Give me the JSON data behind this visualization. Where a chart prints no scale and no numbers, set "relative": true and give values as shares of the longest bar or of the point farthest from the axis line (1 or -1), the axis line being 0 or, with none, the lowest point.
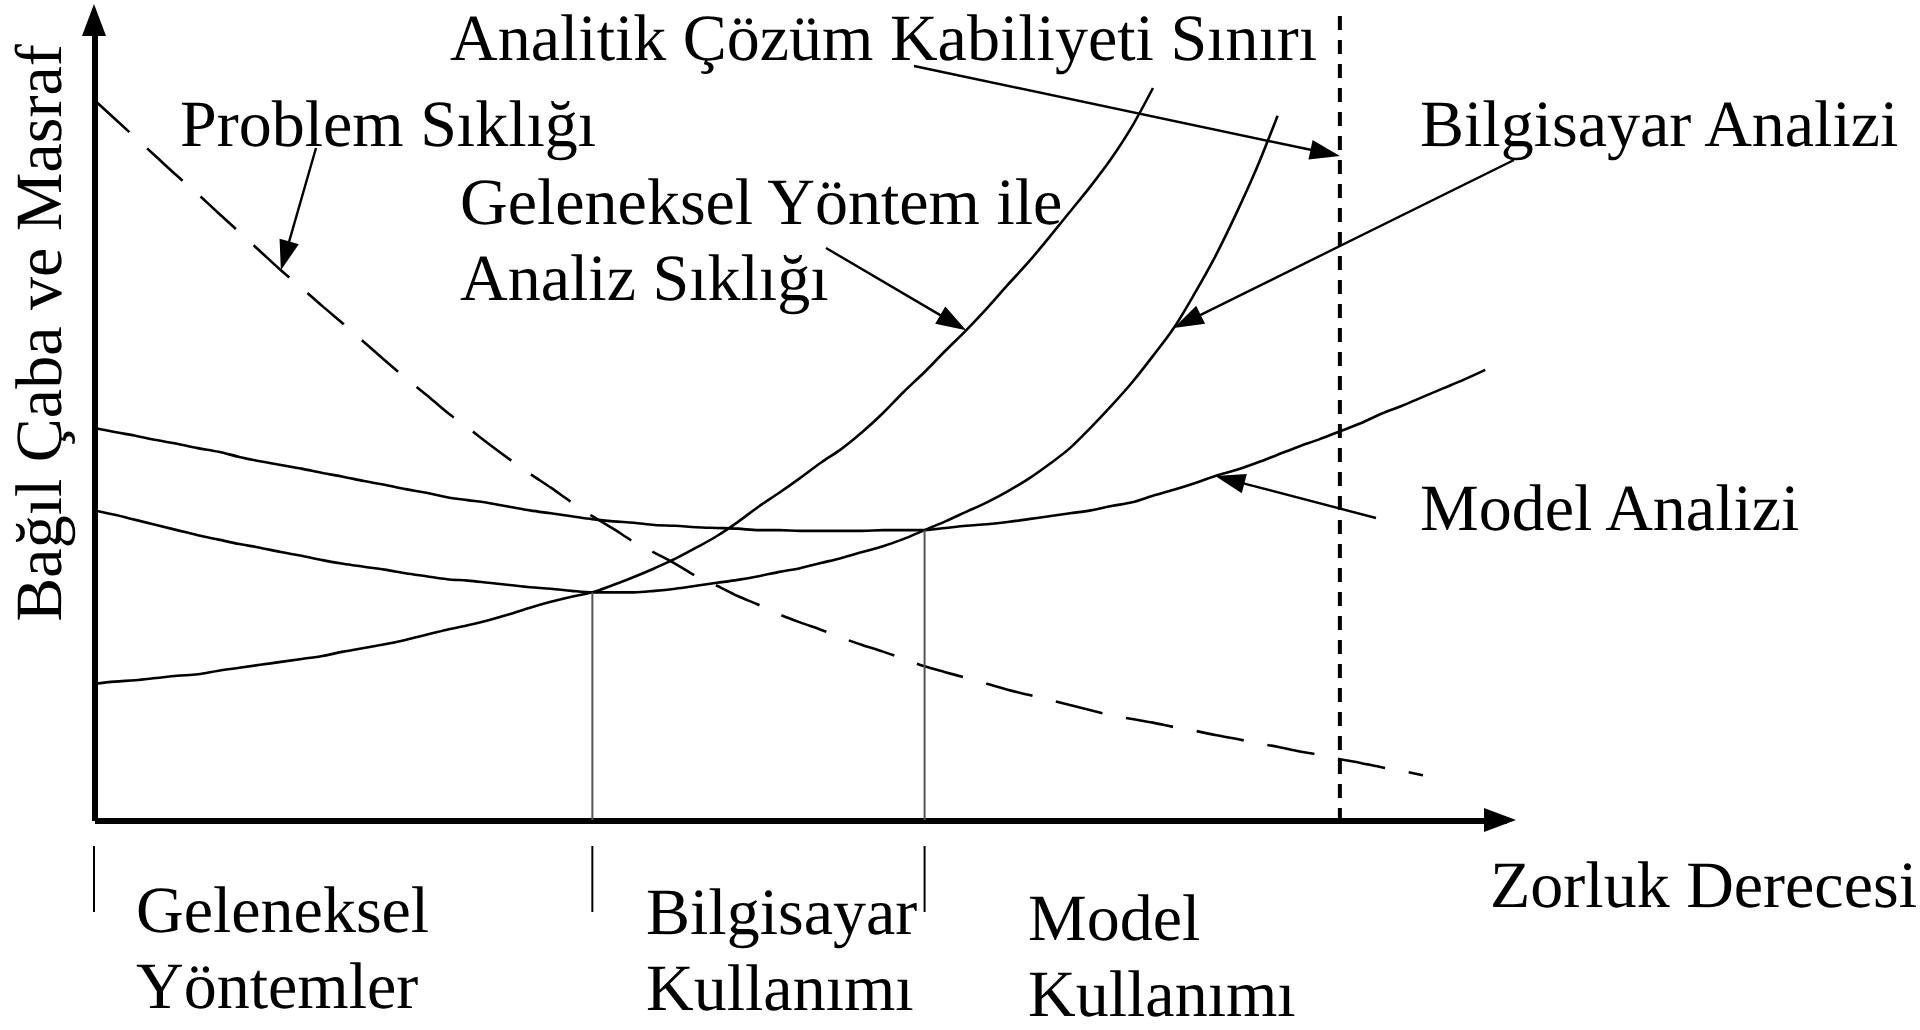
{
  "chart_data": {
    "type": "line",
    "relative": true,
    "legend": "top",
    "ylabel": "Bağıl Çaba ve Masraf",
    "xlabel": "Zorluk Derecesi",
    "categories": [
      null,
      null,
      null,
      null,
      null,
      null,
      null,
      null,
      null,
      null,
      null,
      null,
      null,
      null,
      null,
      null,
      null,
      null,
      null,
      null,
      null,
      null,
      null,
      null,
      null,
      null,
      null,
      null,
      null,
      null,
      null,
      null,
      null,
      null,
      null,
      null,
      null,
      null,
      null,
      null,
      null,
      null,
      null,
      null,
      null,
      null,
      null,
      null,
      null,
      null,
      null,
      null,
      null,
      null,
      null,
      null,
      null,
      null,
      null,
      null,
      null,
      null,
      null,
      null,
      null,
      null,
      null,
      null,
      null
    ],
    "series": [
      {
        "name": "Problem Sıklığı",
        "color": "#000000",
        "line_style": "dashed",
        "values": [
          0.984,
          0.958,
          0.932,
          0.906,
          0.88,
          0.855,
          0.829,
          0.803,
          0.777,
          0.751,
          0.727,
          0.702,
          0.678,
          0.653,
          0.628,
          0.604,
          0.581,
          0.557,
          0.536,
          0.514,
          0.493,
          0.473,
          0.454,
          0.434,
          0.415,
          0.398,
          0.38,
          0.365,
          0.35,
          0.333,
          0.32,
          0.306,
          0.294,
          0.281,
          0.27,
          0.26,
          0.249,
          0.239,
          0.23,
          0.22,
          0.21,
          0.202,
          0.194,
          0.186,
          0.178,
          0.171,
          0.164,
          0.157,
          0.15,
          0.143,
          0.138,
          0.133,
          0.127,
          0.122,
          0.116,
          0.111,
          0.105,
          0.1,
          0.094,
          0.089,
          0.083,
          0.078,
          0.072,
          0.067,
          0.061,
          null,
          null,
          null,
          null
        ]
      },
      {
        "name": "Geleneksel Yöntem ile\nAnaliz Sıklığı",
        "color": "#000000",
        "values": [
          0.186,
          0.189,
          0.191,
          0.194,
          0.197,
          0.199,
          0.204,
          0.208,
          0.212,
          0.216,
          0.22,
          0.224,
          0.23,
          0.235,
          0.24,
          0.246,
          0.253,
          0.26,
          0.266,
          0.273,
          0.281,
          0.29,
          0.298,
          0.305,
          0.311,
          0.321,
          0.332,
          0.344,
          0.357,
          0.372,
          0.388,
          0.407,
          0.428,
          0.447,
          0.467,
          0.488,
          0.507,
          0.53,
          0.556,
          0.585,
          0.612,
          0.641,
          0.669,
          0.699,
          0.731,
          0.762,
          0.796,
          0.831,
          0.866,
          0.904,
          0.948,
          1.0,
          null,
          null,
          null,
          null,
          null,
          null,
          null,
          null,
          null,
          null,
          null,
          null,
          null,
          null,
          null,
          null,
          null
        ]
      },
      {
        "name": "Bilgisayar Analizi",
        "color": "#000000",
        "values": [
          0.423,
          0.417,
          0.41,
          0.403,
          0.396,
          0.389,
          0.383,
          0.377,
          0.372,
          0.366,
          0.361,
          0.355,
          0.35,
          0.346,
          0.342,
          0.337,
          0.333,
          0.329,
          0.327,
          0.324,
          0.321,
          0.318,
          0.316,
          0.313,
          0.311,
          0.311,
          0.311,
          0.313,
          0.316,
          0.32,
          0.324,
          0.328,
          0.333,
          0.339,
          0.344,
          0.351,
          0.358,
          0.366,
          0.374,
          0.384,
          0.396,
          0.408,
          0.421,
          0.434,
          0.449,
          0.466,
          0.486,
          0.508,
          0.536,
          0.566,
          0.598,
          0.634,
          0.672,
          0.719,
          0.77,
          0.828,
          0.891,
          0.962,
          null,
          null,
          null,
          null,
          null,
          null,
          null,
          null,
          null,
          null,
          null
        ]
      },
      {
        "name": "Model Analizi",
        "color": "#000000",
        "values": [
          0.536,
          0.53,
          0.525,
          0.519,
          0.514,
          0.508,
          0.503,
          0.496,
          0.49,
          0.485,
          0.48,
          0.474,
          0.469,
          0.463,
          0.458,
          0.452,
          0.447,
          0.441,
          0.437,
          0.433,
          0.428,
          0.423,
          0.419,
          0.415,
          0.411,
          0.408,
          0.406,
          0.403,
          0.402,
          0.4,
          0.399,
          0.398,
          0.396,
          0.396,
          0.395,
          0.395,
          0.395,
          0.395,
          0.396,
          0.396,
          0.396,
          0.399,
          0.402,
          0.404,
          0.407,
          0.411,
          0.415,
          0.419,
          0.423,
          0.429,
          0.434,
          0.443,
          0.451,
          0.46,
          0.47,
          0.478,
          0.488,
          0.499,
          0.51,
          0.52,
          0.531,
          0.542,
          0.555,
          0.566,
          0.578,
          0.59,
          0.602,
          0.615,
          null
        ]
      }
    ],
    "annotations": [
      "Analitik Çözüm Kabiliyeti Sınırı",
      "Geleneksel\nYöntemler",
      "Bilgisayar\nKullanımı",
      "Model\nKullanımı"
    ]
  }
}
